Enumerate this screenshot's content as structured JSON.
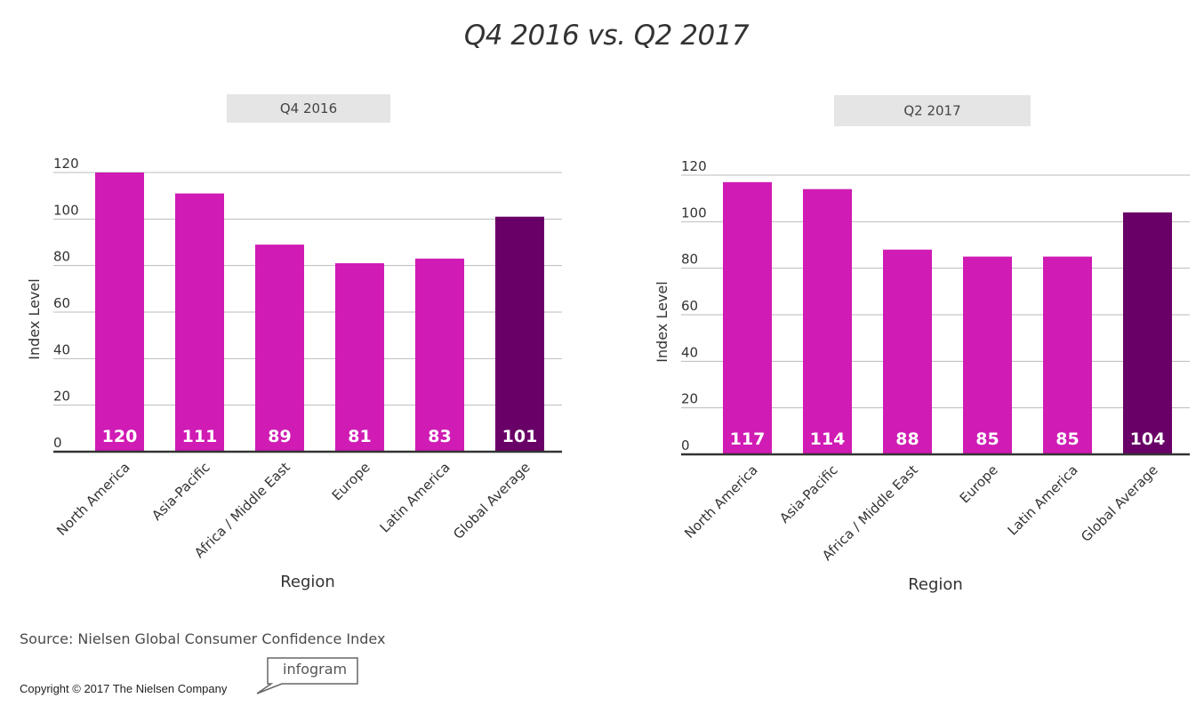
{
  "title": "Q4 2016 vs. Q2 2017",
  "source": "Source: Nielsen Global Consumer Confidence Index",
  "copyright": "Copyright © 2017 The Nielsen Company",
  "logo_text": "infogram",
  "colors": {
    "bar": "#d01bb4",
    "highlight": "#690067",
    "grid": "#bbbbbb",
    "tab_bg": "#e5e5e5"
  },
  "chart_data": [
    {
      "type": "bar",
      "title": "Q4 2016",
      "xlabel": "Region",
      "ylabel": "Index Level",
      "ylim": [
        0,
        120
      ],
      "yticks": [
        "0",
        "20",
        "40",
        "60",
        "80",
        "100",
        "120"
      ],
      "categories": [
        "North America",
        "Asia-Pacific",
        "Africa / Middle East",
        "Europe",
        "Latin America",
        "Global Average"
      ],
      "values": [
        120,
        111,
        89,
        81,
        83,
        101
      ],
      "highlight_category": "Global Average",
      "grid": true
    },
    {
      "type": "bar",
      "title": "Q2 2017",
      "xlabel": "Region",
      "ylabel": "Index Level",
      "ylim": [
        0,
        120
      ],
      "yticks": [
        "0",
        "20",
        "40",
        "60",
        "80",
        "100",
        "120"
      ],
      "categories": [
        "North America",
        "Asia-Pacific",
        "Africa / Middle East",
        "Europe",
        "Latin America",
        "Global Average"
      ],
      "values": [
        117,
        114,
        88,
        85,
        85,
        104
      ],
      "highlight_category": "Global Average",
      "grid": true
    }
  ]
}
